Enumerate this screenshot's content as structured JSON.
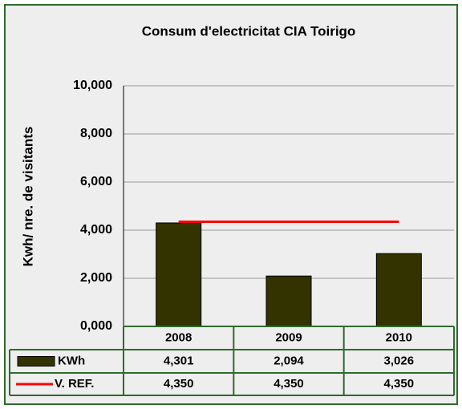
{
  "chart_data": {
    "type": "bar",
    "title": "Consum d'electricitat CIA Toirigo",
    "ylabel": "Kwh/ nre. de visitants",
    "categories": [
      "2008",
      "2009",
      "2010"
    ],
    "series": [
      {
        "name": "KWh",
        "type": "bar",
        "color": "#333300",
        "values": [
          4301,
          2094,
          3026
        ],
        "value_labels": [
          "4,301",
          "2,094",
          "3,026"
        ]
      },
      {
        "name": "V. REF.",
        "type": "line",
        "color": "#ff0000",
        "values": [
          4350,
          4350,
          4350
        ],
        "value_labels": [
          "4,350",
          "4,350",
          "4,350"
        ]
      }
    ],
    "ylim": [
      0,
      10000
    ],
    "yticks": [
      {
        "value": 0,
        "label": "0,000"
      },
      {
        "value": 2000,
        "label": "2,000"
      },
      {
        "value": 4000,
        "label": "4,000"
      },
      {
        "value": 6000,
        "label": "6,000"
      },
      {
        "value": 8000,
        "label": "8,000"
      },
      {
        "value": 10000,
        "label": "10,000"
      }
    ],
    "grid": true
  }
}
